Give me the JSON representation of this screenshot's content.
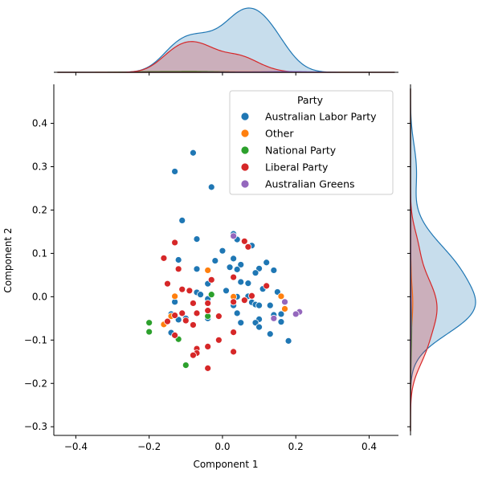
{
  "chart_data": {
    "type": "scatter",
    "xlabel": "Component 1",
    "ylabel": "Component 2",
    "xlim": [
      -0.46,
      0.48
    ],
    "ylim": [
      -0.32,
      0.49
    ],
    "xticks": [
      -0.4,
      -0.2,
      0.0,
      0.2,
      0.4
    ],
    "yticks": [
      -0.3,
      -0.2,
      -0.1,
      0.0,
      0.1,
      0.2,
      0.3,
      0.4
    ],
    "xtick_labels": [
      "−0.4",
      "−0.2",
      "0.0",
      "0.2",
      "0.4"
    ],
    "ytick_labels": [
      "−0.3",
      "−0.2",
      "−0.1",
      "0.0",
      "0.1",
      "0.2",
      "0.3",
      "0.4"
    ],
    "grid": false,
    "legend": {
      "title": "Party",
      "placement": "top-right"
    },
    "marginals": {
      "top": "kde",
      "right": "kde"
    },
    "series": [
      {
        "name": "Australian Labor Party",
        "color": "#1f77b4",
        "points": [
          [
            -0.08,
            0.332
          ],
          [
            -0.13,
            0.289
          ],
          [
            -0.03,
            0.253
          ],
          [
            -0.11,
            0.176
          ],
          [
            -0.07,
            0.133
          ],
          [
            0.03,
            0.145
          ],
          [
            0.04,
            0.132
          ],
          [
            0.08,
            0.118
          ],
          [
            0.0,
            0.106
          ],
          [
            -0.02,
            0.083
          ],
          [
            0.03,
            0.088
          ],
          [
            0.05,
            0.074
          ],
          [
            0.12,
            0.079
          ],
          [
            0.1,
            0.065
          ],
          [
            0.14,
            0.061
          ],
          [
            -0.12,
            0.085
          ],
          [
            -0.07,
            0.064
          ],
          [
            0.04,
            0.063
          ],
          [
            0.09,
            0.055
          ],
          [
            0.02,
            0.068
          ],
          [
            -0.04,
            0.03
          ],
          [
            0.05,
            0.034
          ],
          [
            0.07,
            0.031
          ],
          [
            0.01,
            0.014
          ],
          [
            0.11,
            0.018
          ],
          [
            0.15,
            0.011
          ],
          [
            -0.07,
            0.01
          ],
          [
            -0.06,
            0.005
          ],
          [
            -0.04,
            -0.005
          ],
          [
            0.04,
            0.0
          ],
          [
            0.07,
            0.001
          ],
          [
            0.08,
            -0.013
          ],
          [
            0.09,
            -0.018
          ],
          [
            0.1,
            -0.02
          ],
          [
            0.13,
            -0.02
          ],
          [
            0.03,
            -0.02
          ],
          [
            -0.13,
            -0.012
          ],
          [
            -0.14,
            -0.04
          ],
          [
            0.04,
            -0.038
          ],
          [
            0.1,
            -0.052
          ],
          [
            0.14,
            -0.042
          ],
          [
            0.16,
            -0.058
          ],
          [
            -0.12,
            -0.053
          ],
          [
            -0.04,
            -0.05
          ],
          [
            0.05,
            -0.06
          ],
          [
            0.09,
            -0.06
          ],
          [
            0.1,
            -0.07
          ],
          [
            -0.14,
            -0.083
          ],
          [
            0.13,
            -0.086
          ],
          [
            0.18,
            -0.102
          ],
          [
            0.16,
            -0.04
          ],
          [
            -0.1,
            -0.05
          ]
        ]
      },
      {
        "name": "Other",
        "color": "#ff7f0e",
        "points": [
          [
            -0.04,
            0.061
          ],
          [
            -0.13,
            0.001
          ],
          [
            0.03,
            0.0
          ],
          [
            0.16,
            0.001
          ],
          [
            0.17,
            -0.028
          ],
          [
            -0.16,
            -0.064
          ],
          [
            -0.14,
            -0.045
          ]
        ]
      },
      {
        "name": "National Party",
        "color": "#2ca02c",
        "points": [
          [
            -0.2,
            -0.06
          ],
          [
            -0.2,
            -0.081
          ],
          [
            -0.12,
            -0.098
          ],
          [
            -0.1,
            -0.158
          ],
          [
            -0.04,
            -0.045
          ],
          [
            -0.03,
            0.005
          ]
        ]
      },
      {
        "name": "Liberal Party",
        "color": "#d62728",
        "points": [
          [
            -0.13,
            0.125
          ],
          [
            -0.16,
            0.089
          ],
          [
            0.06,
            0.128
          ],
          [
            0.07,
            0.115
          ],
          [
            -0.12,
            0.064
          ],
          [
            -0.03,
            0.039
          ],
          [
            0.03,
            0.045
          ],
          [
            -0.15,
            0.03
          ],
          [
            -0.11,
            0.017
          ],
          [
            -0.09,
            0.014
          ],
          [
            0.12,
            0.025
          ],
          [
            0.08,
            0.002
          ],
          [
            -0.08,
            -0.015
          ],
          [
            -0.04,
            -0.015
          ],
          [
            0.03,
            -0.012
          ],
          [
            0.06,
            -0.008
          ],
          [
            -0.11,
            -0.038
          ],
          [
            -0.07,
            -0.038
          ],
          [
            -0.04,
            -0.032
          ],
          [
            -0.01,
            -0.045
          ],
          [
            -0.13,
            -0.043
          ],
          [
            -0.15,
            -0.057
          ],
          [
            -0.1,
            -0.055
          ],
          [
            -0.08,
            -0.065
          ],
          [
            -0.13,
            -0.089
          ],
          [
            0.03,
            -0.082
          ],
          [
            -0.01,
            -0.1
          ],
          [
            -0.04,
            -0.115
          ],
          [
            -0.07,
            -0.12
          ],
          [
            -0.07,
            -0.13
          ],
          [
            -0.08,
            -0.135
          ],
          [
            0.03,
            -0.127
          ],
          [
            -0.04,
            -0.165
          ]
        ]
      },
      {
        "name": "Australian Greens",
        "color": "#9467bd",
        "points": [
          [
            0.03,
            0.14
          ],
          [
            0.17,
            -0.012
          ],
          [
            0.21,
            -0.035
          ],
          [
            0.2,
            -0.04
          ],
          [
            0.14,
            -0.05
          ]
        ]
      }
    ]
  }
}
